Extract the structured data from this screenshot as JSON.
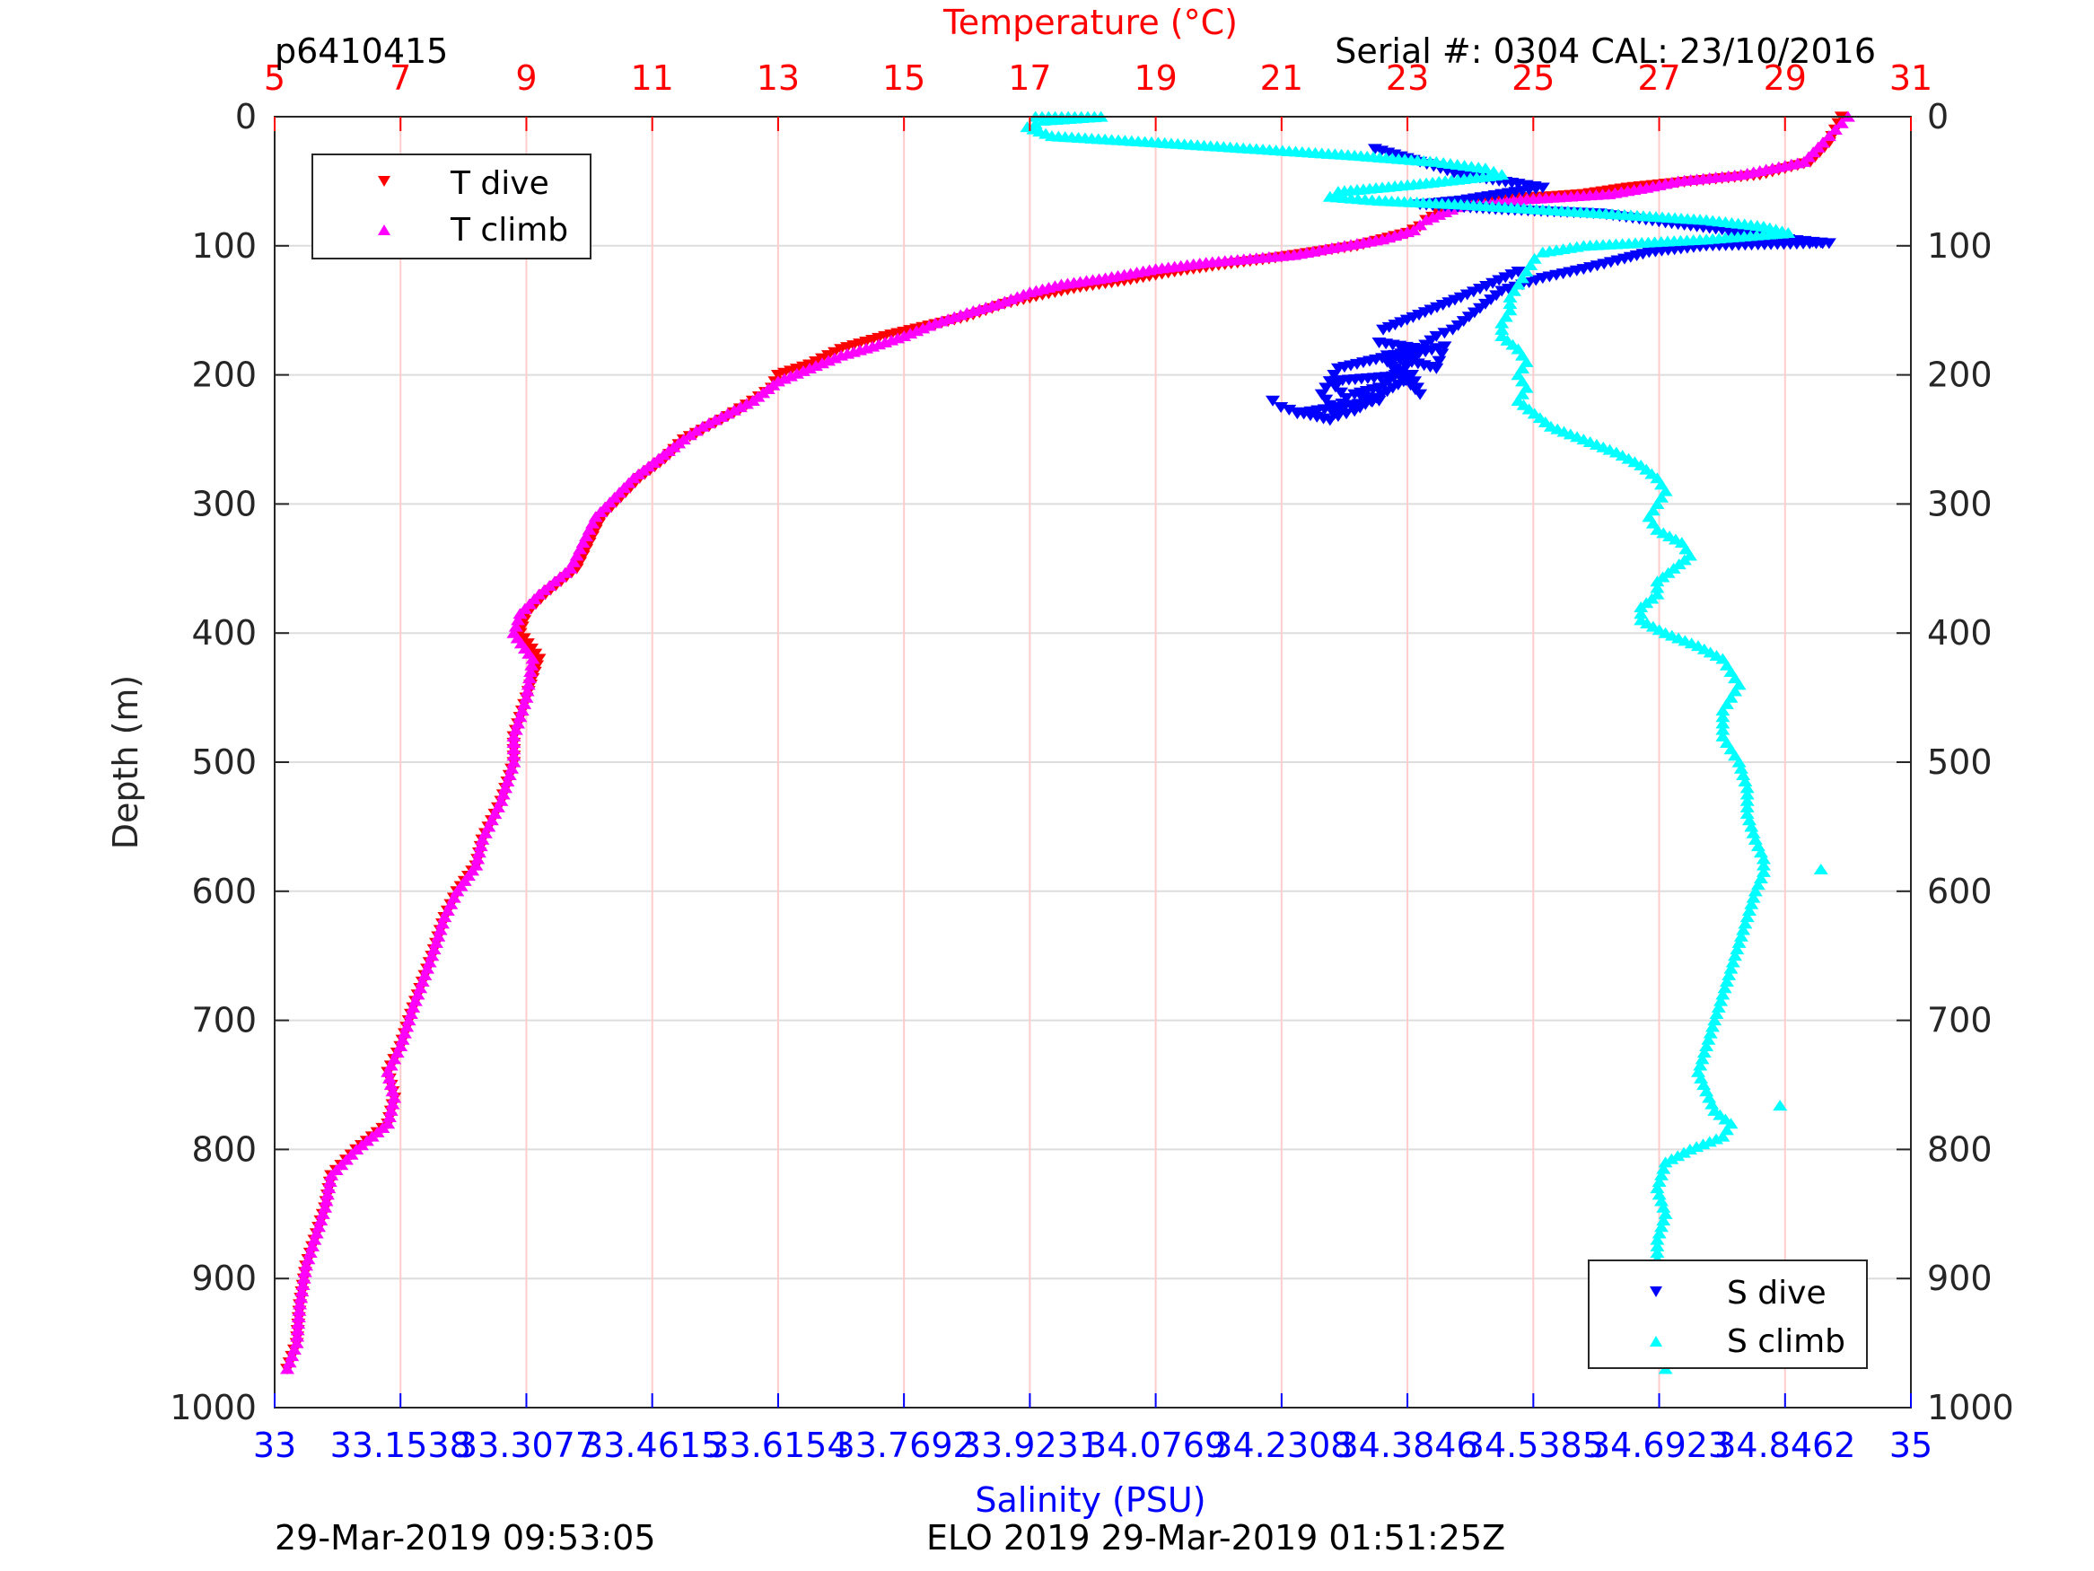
{
  "texts": {
    "top_left": "p6410415",
    "top_right": "Serial #: 0304  CAL: 23/10/2016",
    "bottom_left": "29-Mar-2019 09:53:05",
    "bottom_center": "ELO 2019 29-Mar-2019 01:51:25Z"
  },
  "colors": {
    "t_dive": "#ff0000",
    "t_climb": "#ff00ff",
    "s_dive": "#0000ff",
    "s_climb": "#00ffff",
    "temp_axis": "#ff0000",
    "sal_axis": "#0000ff",
    "grid_temp": "#ffcccc",
    "grid_depth": "#dddddd"
  },
  "chart_data": {
    "type": "scatter",
    "ylabel": "Depth (m)",
    "ylim": [
      1000,
      0
    ],
    "y_ticks": [
      "0",
      "100",
      "200",
      "300",
      "400",
      "500",
      "600",
      "700",
      "800",
      "900",
      "1000"
    ],
    "x_top": {
      "label": "Temperature (°C)",
      "range": [
        5,
        31
      ],
      "ticks": [
        "5",
        "7",
        "9",
        "11",
        "13",
        "15",
        "17",
        "19",
        "21",
        "23",
        "25",
        "27",
        "29",
        "31"
      ]
    },
    "x_bottom": {
      "label": "Salinity (PSU)",
      "range": [
        33,
        35
      ],
      "ticks": [
        "33",
        "33.1538",
        "33.3077",
        "33.4615",
        "33.6154",
        "33.7692",
        "33.9231",
        "34.0769",
        "34.2308",
        "34.3846",
        "34.5385",
        "34.6923",
        "34.8462",
        "35"
      ]
    },
    "grid": true,
    "legend_temp": {
      "placement": "top-left",
      "entries": [
        "T dive",
        "T climb"
      ]
    },
    "legend_sal": {
      "placement": "bottom-right",
      "entries": [
        "S dive",
        "S climb"
      ]
    },
    "series": [
      {
        "name": "T dive",
        "axis": "temperature",
        "marker": "triangle-down",
        "color": "#ff0000",
        "points": [
          [
            29.9,
            0
          ],
          [
            29.8,
            10
          ],
          [
            29.7,
            20
          ],
          [
            29.4,
            35
          ],
          [
            28.6,
            45
          ],
          [
            27.5,
            50
          ],
          [
            26.5,
            55
          ],
          [
            25.8,
            60
          ],
          [
            25.2,
            62
          ],
          [
            24.5,
            63
          ],
          [
            24.0,
            65
          ],
          [
            23.8,
            70
          ],
          [
            23.5,
            75
          ],
          [
            23.3,
            80
          ],
          [
            23.2,
            85
          ],
          [
            23.0,
            90
          ],
          [
            22.6,
            95
          ],
          [
            22.2,
            100
          ],
          [
            21.5,
            105
          ],
          [
            20.8,
            110
          ],
          [
            20.0,
            115
          ],
          [
            19.3,
            120
          ],
          [
            18.5,
            127
          ],
          [
            17.8,
            132
          ],
          [
            17.2,
            138
          ],
          [
            16.6,
            145
          ],
          [
            16.0,
            155
          ],
          [
            15.3,
            163
          ],
          [
            14.7,
            170
          ],
          [
            14.0,
            180
          ],
          [
            13.5,
            192
          ],
          [
            13.0,
            200
          ],
          [
            12.9,
            210
          ],
          [
            12.6,
            220
          ],
          [
            12.2,
            232
          ],
          [
            11.9,
            240
          ],
          [
            11.5,
            250
          ],
          [
            11.2,
            265
          ],
          [
            10.8,
            280
          ],
          [
            10.5,
            295
          ],
          [
            10.2,
            310
          ],
          [
            10.0,
            330
          ],
          [
            9.8,
            350
          ],
          [
            9.3,
            370
          ],
          [
            9.0,
            385
          ],
          [
            8.9,
            400
          ],
          [
            9.2,
            420
          ],
          [
            9.0,
            450
          ],
          [
            8.8,
            480
          ],
          [
            8.8,
            500
          ],
          [
            8.6,
            530
          ],
          [
            8.3,
            560
          ],
          [
            8.2,
            580
          ],
          [
            7.9,
            600
          ],
          [
            7.7,
            620
          ],
          [
            7.5,
            650
          ],
          [
            7.2,
            690
          ],
          [
            7.0,
            720
          ],
          [
            6.8,
            740
          ],
          [
            6.9,
            760
          ],
          [
            6.8,
            780
          ],
          [
            6.3,
            800
          ],
          [
            5.9,
            820
          ],
          [
            5.8,
            845
          ],
          [
            5.7,
            860
          ],
          [
            5.5,
            890
          ],
          [
            5.4,
            920
          ],
          [
            5.35,
            950
          ],
          [
            5.2,
            970
          ]
        ]
      },
      {
        "name": "T climb",
        "axis": "temperature",
        "marker": "triangle-up",
        "color": "#ff00ff",
        "points": [
          [
            30.0,
            0
          ],
          [
            29.8,
            10
          ],
          [
            29.6,
            20
          ],
          [
            29.3,
            35
          ],
          [
            28.3,
            45
          ],
          [
            27.3,
            50
          ],
          [
            26.8,
            55
          ],
          [
            26.2,
            60
          ],
          [
            25.2,
            63
          ],
          [
            24.5,
            65
          ],
          [
            23.8,
            70
          ],
          [
            23.3,
            80
          ],
          [
            23.1,
            88
          ],
          [
            22.6,
            95
          ],
          [
            22.0,
            100
          ],
          [
            21.2,
            107
          ],
          [
            20.5,
            110
          ],
          [
            19.8,
            113
          ],
          [
            19.0,
            118
          ],
          [
            18.2,
            125
          ],
          [
            17.5,
            130
          ],
          [
            17.0,
            136
          ],
          [
            16.5,
            145
          ],
          [
            16.0,
            152
          ],
          [
            15.5,
            160
          ],
          [
            15.0,
            170
          ],
          [
            14.5,
            178
          ],
          [
            14.0,
            185
          ],
          [
            13.5,
            195
          ],
          [
            13.0,
            205
          ],
          [
            12.6,
            220
          ],
          [
            12.2,
            230
          ],
          [
            11.8,
            240
          ],
          [
            11.5,
            250
          ],
          [
            11.1,
            265
          ],
          [
            10.7,
            280
          ],
          [
            10.4,
            295
          ],
          [
            10.1,
            310
          ],
          [
            9.9,
            330
          ],
          [
            9.7,
            350
          ],
          [
            9.2,
            370
          ],
          [
            8.9,
            385
          ],
          [
            8.8,
            400
          ],
          [
            9.1,
            420
          ],
          [
            9.0,
            450
          ],
          [
            8.8,
            480
          ],
          [
            8.8,
            500
          ],
          [
            8.6,
            530
          ],
          [
            8.3,
            560
          ],
          [
            8.2,
            580
          ],
          [
            7.9,
            600
          ],
          [
            7.7,
            620
          ],
          [
            7.5,
            650
          ],
          [
            7.2,
            690
          ],
          [
            7.0,
            720
          ],
          [
            6.8,
            740
          ],
          [
            6.9,
            760
          ],
          [
            6.8,
            780
          ],
          [
            6.3,
            800
          ],
          [
            5.9,
            820
          ],
          [
            5.8,
            845
          ],
          [
            5.7,
            860
          ],
          [
            5.5,
            890
          ],
          [
            5.4,
            920
          ],
          [
            5.35,
            950
          ],
          [
            5.2,
            970
          ]
        ]
      },
      {
        "name": "S dive",
        "axis": "salinity",
        "marker": "triangle-down",
        "color": "#0000ff",
        "points": [
          [
            34.345,
            25
          ],
          [
            34.4,
            35
          ],
          [
            34.45,
            45
          ],
          [
            34.52,
            52
          ],
          [
            34.55,
            55
          ],
          [
            34.5,
            60
          ],
          [
            34.45,
            65
          ],
          [
            34.4,
            68
          ],
          [
            34.5,
            72
          ],
          [
            34.62,
            75
          ],
          [
            34.7,
            82
          ],
          [
            34.8,
            90
          ],
          [
            34.85,
            95
          ],
          [
            34.88,
            97
          ],
          [
            34.9,
            98
          ],
          [
            34.75,
            100
          ],
          [
            34.68,
            105
          ],
          [
            34.65,
            110
          ],
          [
            34.6,
            118
          ],
          [
            34.55,
            125
          ],
          [
            34.5,
            135
          ],
          [
            34.48,
            145
          ],
          [
            34.46,
            155
          ],
          [
            34.44,
            165
          ],
          [
            34.42,
            170
          ],
          [
            34.4,
            180
          ],
          [
            34.39,
            190
          ],
          [
            34.37,
            200
          ],
          [
            34.35,
            210
          ],
          [
            34.32,
            215
          ],
          [
            34.35,
            220
          ],
          [
            34.3,
            225
          ],
          [
            34.25,
            230
          ],
          [
            34.35,
            175
          ],
          [
            34.4,
            180
          ],
          [
            34.3,
            195
          ],
          [
            34.28,
            215
          ],
          [
            34.3,
            232
          ],
          [
            34.32,
            228
          ],
          [
            34.38,
            205
          ],
          [
            34.36,
            185
          ],
          [
            34.42,
            195
          ],
          [
            34.43,
            178
          ],
          [
            34.36,
            190
          ],
          [
            34.4,
            215
          ],
          [
            34.39,
            200
          ],
          [
            34.29,
            205
          ],
          [
            34.31,
            218
          ],
          [
            34.29,
            235
          ],
          [
            34.25,
            229
          ],
          [
            34.23,
            225
          ],
          [
            34.22,
            220
          ],
          [
            34.355,
            165
          ],
          [
            34.45,
            140
          ],
          [
            34.52,
            120
          ]
        ]
      },
      {
        "name": "S climb",
        "axis": "salinity",
        "marker": "triangle-up",
        "color": "#00ffff",
        "points": [
          [
            33.93,
            0
          ],
          [
            34.01,
            0
          ],
          [
            33.94,
            3
          ],
          [
            33.92,
            8
          ],
          [
            33.95,
            15
          ],
          [
            34.08,
            20
          ],
          [
            34.2,
            25
          ],
          [
            34.32,
            30
          ],
          [
            34.42,
            35
          ],
          [
            34.48,
            40
          ],
          [
            34.5,
            45
          ],
          [
            34.4,
            52
          ],
          [
            34.3,
            58
          ],
          [
            34.29,
            62
          ],
          [
            34.35,
            65
          ],
          [
            34.45,
            68
          ],
          [
            34.55,
            72
          ],
          [
            34.65,
            76
          ],
          [
            34.75,
            80
          ],
          [
            34.82,
            85
          ],
          [
            34.85,
            90
          ],
          [
            34.75,
            95
          ],
          [
            34.6,
            100
          ],
          [
            34.55,
            105
          ],
          [
            34.54,
            110
          ],
          [
            34.53,
            120
          ],
          [
            34.52,
            130
          ],
          [
            34.51,
            140
          ],
          [
            34.51,
            150
          ],
          [
            34.5,
            160
          ],
          [
            34.5,
            170
          ],
          [
            34.52,
            180
          ],
          [
            34.53,
            190
          ],
          [
            34.52,
            200
          ],
          [
            34.53,
            210
          ],
          [
            34.52,
            220
          ],
          [
            34.54,
            230
          ],
          [
            34.56,
            240
          ],
          [
            34.6,
            250
          ],
          [
            34.64,
            260
          ],
          [
            34.67,
            270
          ],
          [
            34.69,
            280
          ],
          [
            34.7,
            290
          ],
          [
            34.69,
            300
          ],
          [
            34.68,
            310
          ],
          [
            34.69,
            320
          ],
          [
            34.72,
            330
          ],
          [
            34.73,
            340
          ],
          [
            34.71,
            350
          ],
          [
            34.69,
            360
          ],
          [
            34.69,
            370
          ],
          [
            34.67,
            380
          ],
          [
            34.67,
            390
          ],
          [
            34.7,
            400
          ],
          [
            34.74,
            410
          ],
          [
            34.77,
            420
          ],
          [
            34.78,
            430
          ],
          [
            34.79,
            440
          ],
          [
            34.78,
            450
          ],
          [
            34.77,
            460
          ],
          [
            34.77,
            480
          ],
          [
            34.79,
            500
          ],
          [
            34.8,
            520
          ],
          [
            34.8,
            540
          ],
          [
            34.81,
            560
          ],
          [
            34.82,
            575
          ],
          [
            34.82,
            585
          ],
          [
            34.81,
            600
          ],
          [
            34.8,
            620
          ],
          [
            34.79,
            640
          ],
          [
            34.78,
            660
          ],
          [
            34.77,
            680
          ],
          [
            34.76,
            700
          ],
          [
            34.75,
            720
          ],
          [
            34.74,
            740
          ],
          [
            34.75,
            755
          ],
          [
            34.76,
            770
          ],
          [
            34.78,
            780
          ],
          [
            34.77,
            790
          ],
          [
            34.73,
            800
          ],
          [
            34.7,
            810
          ],
          [
            34.69,
            830
          ],
          [
            34.7,
            850
          ],
          [
            34.69,
            870
          ],
          [
            34.69,
            890
          ],
          [
            34.69,
            910
          ],
          [
            34.69,
            930
          ],
          [
            34.7,
            950
          ],
          [
            34.7,
            970
          ],
          [
            34.89,
            583
          ],
          [
            34.84,
            766
          ]
        ]
      }
    ]
  }
}
